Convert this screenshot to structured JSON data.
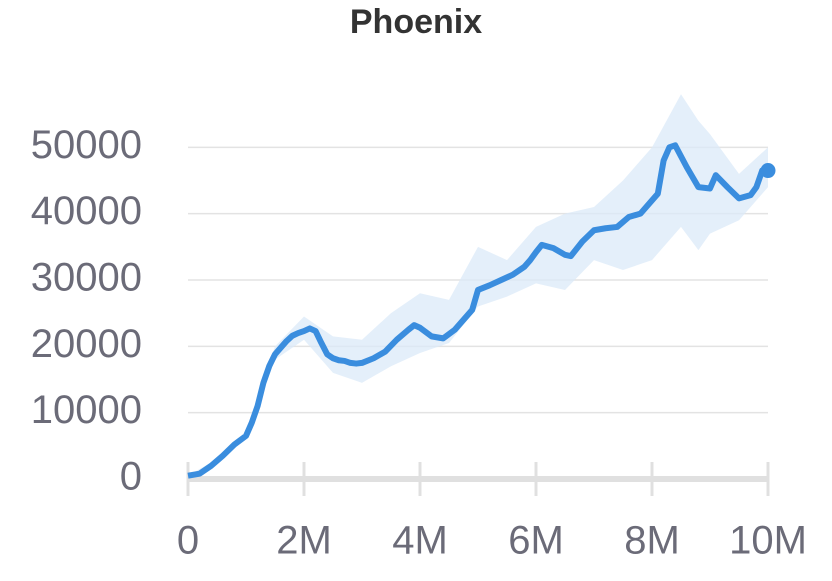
{
  "chart_data": {
    "type": "line",
    "title": "Phoenix",
    "xlim": [
      0,
      10000000
    ],
    "ylim": [
      0,
      60000
    ],
    "xticks": [
      0,
      {
        "value": 2000000,
        "label": "2M"
      },
      {
        "value": 4000000,
        "label": "4M"
      },
      {
        "value": 6000000,
        "label": "6M"
      },
      {
        "value": 8000000,
        "label": "8M"
      },
      {
        "value": 10000000,
        "label": "10M"
      }
    ],
    "yticks": [
      0,
      10000,
      20000,
      30000,
      40000,
      50000
    ],
    "grid": true,
    "series": [
      {
        "name": "Phoenix",
        "color": "#3a8dde",
        "x": [
          0,
          200000,
          400000,
          600000,
          800000,
          1000000,
          1100000,
          1200000,
          1300000,
          1400000,
          1500000,
          1600000,
          1700000,
          1800000,
          1900000,
          2000000,
          2100000,
          2200000,
          2300000,
          2400000,
          2500000,
          2600000,
          2700000,
          2800000,
          2900000,
          3000000,
          3200000,
          3400000,
          3600000,
          3800000,
          3900000,
          4000000,
          4200000,
          4400000,
          4600000,
          4800000,
          4900000,
          5000000,
          5200000,
          5400000,
          5600000,
          5800000,
          5900000,
          6000000,
          6100000,
          6300000,
          6500000,
          6600000,
          6800000,
          7000000,
          7200000,
          7400000,
          7600000,
          7800000,
          8000000,
          8100000,
          8200000,
          8300000,
          8400000,
          8600000,
          8800000,
          9000000,
          9100000,
          9300000,
          9500000,
          9700000,
          9800000,
          9900000,
          10000000
        ],
        "values": [
          500,
          800,
          2000,
          3500,
          5200,
          6500,
          8500,
          11000,
          14500,
          17000,
          18800,
          19800,
          20800,
          21600,
          22000,
          22300,
          22700,
          22300,
          20500,
          18800,
          18200,
          17900,
          17800,
          17500,
          17400,
          17500,
          18200,
          19200,
          21000,
          22500,
          23200,
          22800,
          21500,
          21200,
          22500,
          24500,
          25500,
          28500,
          29200,
          30000,
          30800,
          32000,
          33000,
          34200,
          35300,
          34800,
          33800,
          33600,
          35800,
          37500,
          37800,
          38000,
          39500,
          40000,
          42000,
          43000,
          48000,
          50000,
          50300,
          47000,
          44000,
          43800,
          45800,
          44000,
          42300,
          42800,
          44000,
          46500,
          46500
        ]
      }
    ],
    "band": {
      "x": [
        0,
        500000,
        1000000,
        1500000,
        2000000,
        2500000,
        3000000,
        3500000,
        4000000,
        4500000,
        5000000,
        5500000,
        6000000,
        6500000,
        7000000,
        7500000,
        8000000,
        8500000,
        8800000,
        9000000,
        9500000,
        10000000
      ],
      "lower": [
        500,
        2500,
        6000,
        18000,
        21000,
        16000,
        14500,
        17000,
        19000,
        20500,
        26000,
        27500,
        29500,
        28500,
        33000,
        31500,
        33000,
        38000,
        34500,
        37000,
        39000,
        44000
      ],
      "upper": [
        500,
        3000,
        7000,
        20000,
        24500,
        21500,
        21000,
        25000,
        28000,
        27000,
        35000,
        33000,
        38000,
        40000,
        41000,
        45000,
        50000,
        58000,
        54000,
        52000,
        46000,
        50000
      ]
    }
  }
}
